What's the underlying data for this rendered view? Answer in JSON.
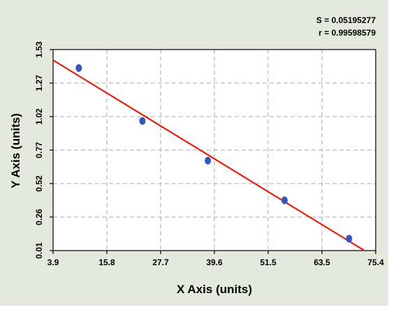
{
  "chart_data": {
    "type": "scatter",
    "title": "",
    "xlabel": "X Axis (units)",
    "ylabel": "Y Axis (units)",
    "xlim": [
      3.9,
      75.4
    ],
    "ylim": [
      0.01,
      1.53
    ],
    "x_ticks": [
      "3.9",
      "15.8",
      "27.7",
      "39.6",
      "51.5",
      "63.5",
      "75.4"
    ],
    "y_ticks": [
      "0.01",
      "0.26",
      "0.52",
      "0.77",
      "1.02",
      "1.27",
      "1.53"
    ],
    "grid": true,
    "points": [
      {
        "x": 9.6,
        "y": 1.39
      },
      {
        "x": 23.7,
        "y": 0.99
      },
      {
        "x": 38.2,
        "y": 0.69
      },
      {
        "x": 55.2,
        "y": 0.39
      },
      {
        "x": 69.5,
        "y": 0.1
      }
    ],
    "fit_line": {
      "x": [
        3.9,
        72.9
      ],
      "y": [
        1.45,
        0.01
      ]
    },
    "stats": {
      "s": "S = 0.05195277",
      "r": "r = 0.99598579"
    },
    "colors": {
      "background": "#e4e8dd",
      "plot_area": "#ffffff",
      "points": "#3a55b8",
      "fit_line": "#e02010",
      "grid": "#a8a8a8"
    }
  }
}
